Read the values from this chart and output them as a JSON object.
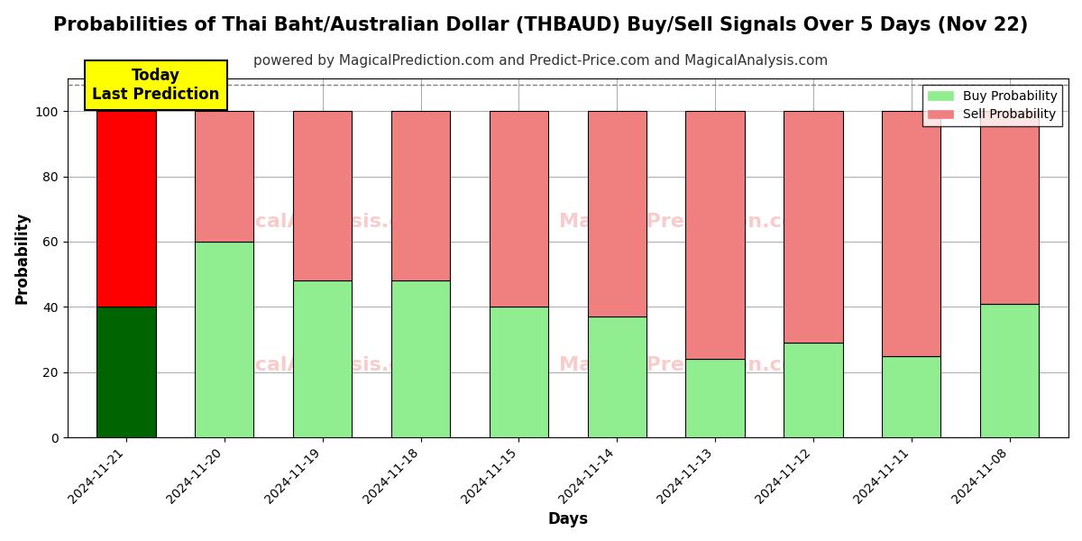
{
  "title": "Probabilities of Thai Baht/Australian Dollar (THBAUD) Buy/Sell Signals Over 5 Days (Nov 22)",
  "subtitle": "powered by MagicalPrediction.com and Predict-Price.com and MagicalAnalysis.com",
  "xlabel": "Days",
  "ylabel": "Probability",
  "categories": [
    "2024-11-21",
    "2024-11-20",
    "2024-11-19",
    "2024-11-18",
    "2024-11-15",
    "2024-11-14",
    "2024-11-13",
    "2024-11-12",
    "2024-11-11",
    "2024-11-08"
  ],
  "buy_values": [
    40,
    60,
    48,
    48,
    40,
    37,
    24,
    29,
    25,
    41
  ],
  "sell_values": [
    60,
    40,
    52,
    52,
    60,
    63,
    76,
    71,
    75,
    59
  ],
  "buy_colors": [
    "#006400",
    "#90EE90",
    "#90EE90",
    "#90EE90",
    "#90EE90",
    "#90EE90",
    "#90EE90",
    "#90EE90",
    "#90EE90",
    "#90EE90"
  ],
  "sell_colors": [
    "#FF0000",
    "#F08080",
    "#F08080",
    "#F08080",
    "#F08080",
    "#F08080",
    "#F08080",
    "#F08080",
    "#F08080",
    "#F08080"
  ],
  "today_label": "Today\nLast Prediction",
  "legend_buy_label": "Buy Probability",
  "legend_sell_label": "Sell Probability",
  "ylim": [
    0,
    110
  ],
  "yticks": [
    0,
    20,
    40,
    60,
    80,
    100
  ],
  "dashed_line_y": 108,
  "background_color": "#ffffff",
  "grid_color": "#aaaaaa",
  "bar_edge_color": "#000000",
  "title_fontsize": 15,
  "subtitle_fontsize": 11,
  "axis_label_fontsize": 12,
  "tick_fontsize": 10
}
